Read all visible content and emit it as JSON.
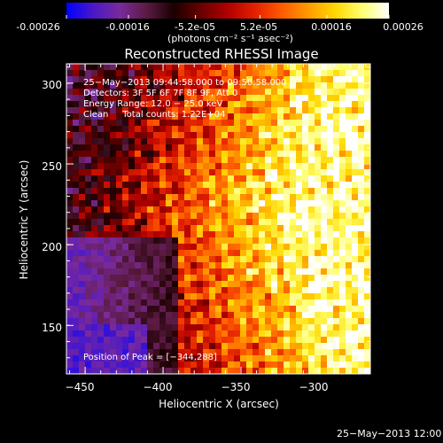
{
  "colorbar": {
    "tick_labels": [
      "-0.00026",
      "-0.00016",
      "-5.2e-05",
      "5.2e-05",
      "0.00016",
      "0.00026"
    ],
    "range": [
      -0.00026,
      0.00026
    ],
    "unit_label": "(photons cm⁻² s⁻¹ asec⁻²)",
    "colors": [
      "#0000ff",
      "#4a18c8",
      "#7a2a9a",
      "#5a1a40",
      "#1a0000",
      "#6a0000",
      "#b00000",
      "#e22000",
      "#ff5a00",
      "#ff9a00",
      "#ffd800",
      "#ffff70",
      "#ffffff"
    ]
  },
  "chart_data": {
    "type": "heatmap",
    "title": "Reconstructed RHESSI Image",
    "xlabel": "Heliocentric X (arcsec)",
    "ylabel": "Heliocentric Y (arcsec)",
    "xlim": [
      -462,
      -267
    ],
    "ylim": [
      120,
      312
    ],
    "x_ticks": [
      -450,
      -400,
      -350,
      -300
    ],
    "y_ticks": [
      150,
      200,
      250,
      300
    ],
    "x_tick_labels": [
      "−450",
      "−400",
      "−350",
      "−300"
    ],
    "y_tick_labels": [
      "150",
      "200",
      "250",
      "300"
    ],
    "annotations": [
      "25−May−2013 09:44:58.000 to 09:50:58.000",
      "Detectors: 3F 5F 6F 7F 8F 9F, Att 0",
      "Energy Range: 12.0 − 25.0 keV",
      "Clean     Total counts: 1.22E+04"
    ],
    "peak_text": "Position of Peak = [−344,288]",
    "peak_position": [
      -344,
      288
    ]
  },
  "footer": {
    "timestamp": "25−May−2013 12:00"
  }
}
